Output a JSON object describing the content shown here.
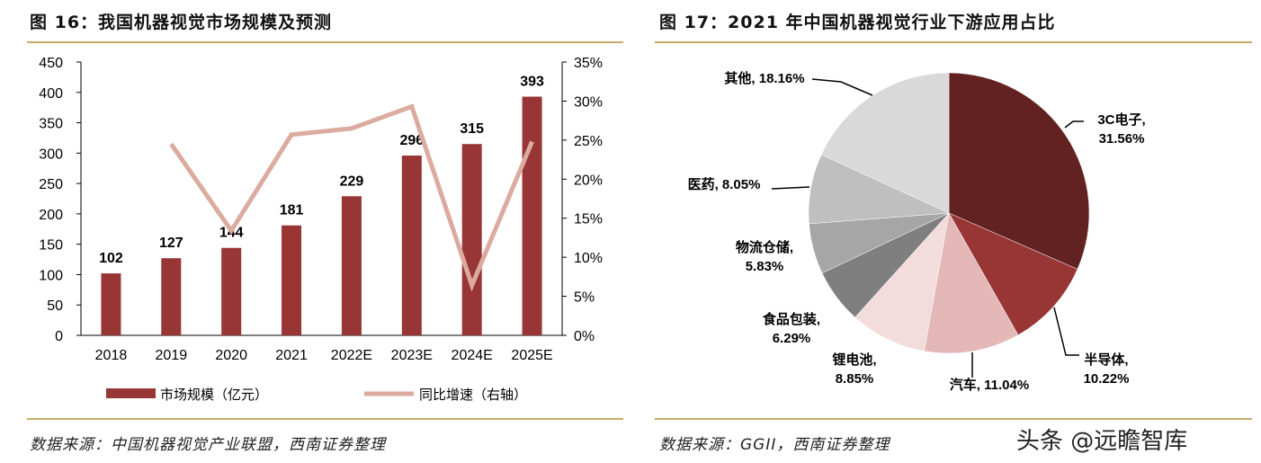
{
  "left": {
    "title": "图 16：我国机器视觉市场规模及预测",
    "source": "数据来源：中国机器视觉产业联盟，西南证券整理"
  },
  "right": {
    "title": "图 17：2021 年中国机器视觉行业下游应用占比",
    "source": "数据来源：GGII，西南证券整理"
  },
  "watermark": "头条 @远瞻智库",
  "colors": {
    "rule": "#c9a96b",
    "bar": "#983535",
    "line": "#dcab9f"
  },
  "chart_data": [
    {
      "type": "bar+line",
      "categories": [
        "2018",
        "2019",
        "2020",
        "2021",
        "2022E",
        "2023E",
        "2024E",
        "2025E"
      ],
      "series": [
        {
          "name": "市场规模（亿元）",
          "type": "bar",
          "axis": "left",
          "values": [
            102,
            127,
            144,
            181,
            229,
            296,
            315,
            393
          ]
        },
        {
          "name": "同比增速（右轴）",
          "type": "line",
          "axis": "right",
          "values": [
            null,
            24.5,
            13.4,
            25.7,
            26.5,
            29.3,
            6.4,
            24.8
          ]
        }
      ],
      "ylim": [
        0,
        450
      ],
      "yticks": [
        0,
        50,
        100,
        150,
        200,
        250,
        300,
        350,
        400,
        450
      ],
      "y2lim": [
        0,
        35
      ],
      "y2ticks": [
        "0%",
        "5%",
        "10%",
        "15%",
        "20%",
        "25%",
        "30%",
        "35%"
      ],
      "legend": "bottom",
      "grid": false
    },
    {
      "type": "pie",
      "slices": [
        {
          "label": "3C电子,",
          "pct": "31.56%",
          "value": 31.56,
          "color": "#632222"
        },
        {
          "label": "半导体,",
          "pct": "10.22%",
          "value": 10.22,
          "color": "#983535"
        },
        {
          "label": "汽车,",
          "pct": "11.04%",
          "value": 11.04,
          "color": "#e5b8b8"
        },
        {
          "label": "锂电池,",
          "pct": "8.85%",
          "value": 8.85,
          "color": "#f2dcdc"
        },
        {
          "label": "食品包装,",
          "pct": "6.29%",
          "value": 6.29,
          "color": "#7f7f7f"
        },
        {
          "label": "物流仓储,",
          "pct": "5.83%",
          "value": 5.83,
          "color": "#a6a6a6"
        },
        {
          "label": "医药,",
          "pct": "8.05%",
          "value": 8.05,
          "color": "#bfbfbf"
        },
        {
          "label": "其他,",
          "pct": "18.16%",
          "value": 18.16,
          "color": "#d9d9d9"
        }
      ]
    }
  ]
}
